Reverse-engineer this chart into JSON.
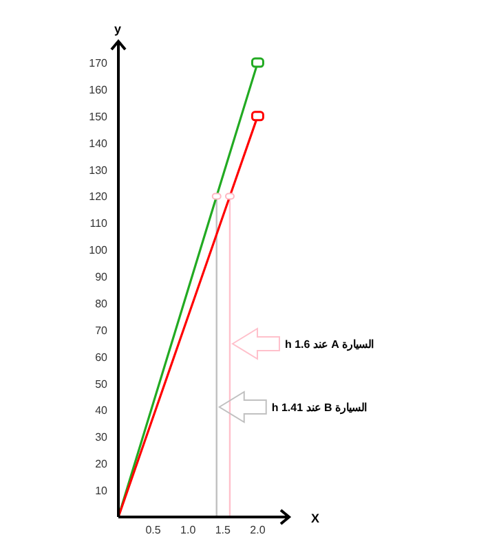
{
  "chart_data": {
    "type": "line",
    "xlabel": "X",
    "ylabel": "y",
    "xlim": [
      0,
      2.45
    ],
    "ylim": [
      0,
      178
    ],
    "xticks": [
      0.5,
      {
        "value": 1,
        "label": "1.0"
      },
      1.5,
      {
        "value": 2,
        "label": "2.0"
      }
    ],
    "yticks": [
      10,
      20,
      30,
      40,
      50,
      60,
      70,
      80,
      90,
      100,
      110,
      120,
      130,
      140,
      150,
      160,
      170
    ],
    "marker": "square",
    "grid": false,
    "annotations": [
      "السيارة A عند 1.6 h",
      "السيارة B عند 1.41 h"
    ],
    "series": [
      {
        "color": "#22aa22",
        "x": [
          0,
          1.41,
          2
        ],
        "values": [
          0,
          120,
          170
        ]
      },
      {
        "color": "#ff0000",
        "x": [
          0,
          1.6,
          2
        ],
        "values": [
          0,
          120,
          150
        ]
      }
    ],
    "ref_lines": [
      {
        "axis": "x",
        "value": 1.6,
        "color": "#ffc0cb"
      },
      {
        "axis": "x",
        "value": 1.41,
        "color": "#c0c0c0"
      }
    ]
  }
}
